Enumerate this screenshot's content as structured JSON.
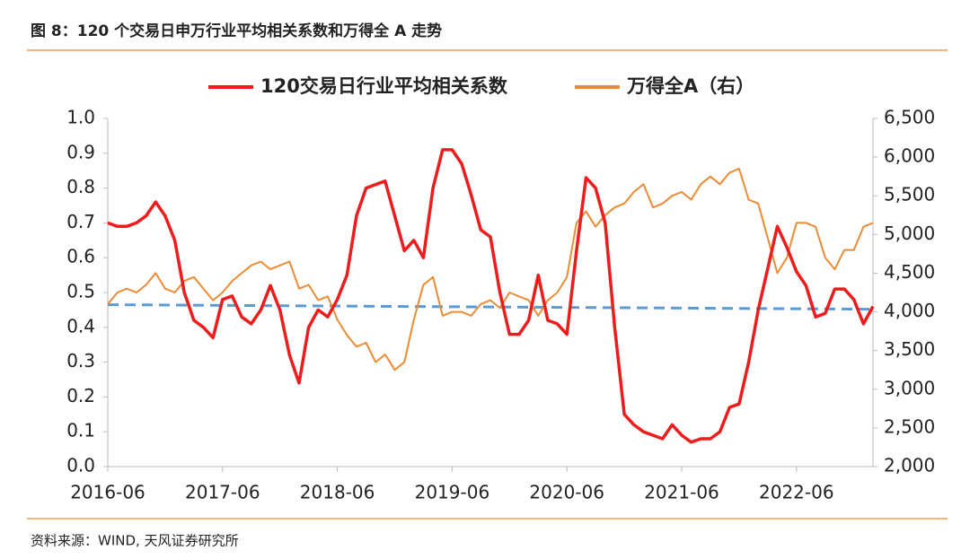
{
  "chart_data": {
    "type": "line",
    "title": "图 8：120 个交易日申万行业平均相关系数和万得全 A 走势",
    "source": "资料来源：WIND, 天风证券研究所",
    "x": [
      "2016-06",
      "2016-07",
      "2016-08",
      "2016-09",
      "2016-10",
      "2016-11",
      "2016-12",
      "2017-01",
      "2017-02",
      "2017-03",
      "2017-04",
      "2017-05",
      "2017-06",
      "2017-07",
      "2017-08",
      "2017-09",
      "2017-10",
      "2017-11",
      "2017-12",
      "2018-01",
      "2018-02",
      "2018-03",
      "2018-04",
      "2018-05",
      "2018-06",
      "2018-07",
      "2018-08",
      "2018-09",
      "2018-10",
      "2018-11",
      "2018-12",
      "2019-01",
      "2019-02",
      "2019-03",
      "2019-04",
      "2019-05",
      "2019-06",
      "2019-07",
      "2019-08",
      "2019-09",
      "2019-10",
      "2019-11",
      "2019-12",
      "2020-01",
      "2020-02",
      "2020-03",
      "2020-04",
      "2020-05",
      "2020-06",
      "2020-07",
      "2020-08",
      "2020-09",
      "2020-10",
      "2020-11",
      "2020-12",
      "2021-01",
      "2021-02",
      "2021-03",
      "2021-04",
      "2021-05",
      "2021-06",
      "2021-07",
      "2021-08",
      "2021-09",
      "2021-10",
      "2021-11",
      "2021-12",
      "2022-01",
      "2022-02",
      "2022-03",
      "2022-04",
      "2022-05",
      "2022-06",
      "2022-07",
      "2022-08",
      "2022-09",
      "2022-10",
      "2022-11",
      "2022-12",
      "2023-01",
      "2023-02"
    ],
    "series": [
      {
        "name": "120交易日行业平均相关系数",
        "color": "#ee1c1c",
        "values": [
          0.7,
          0.69,
          0.69,
          0.7,
          0.72,
          0.76,
          0.72,
          0.65,
          0.5,
          0.42,
          0.4,
          0.37,
          0.48,
          0.49,
          0.43,
          0.41,
          0.45,
          0.52,
          0.45,
          0.32,
          0.24,
          0.4,
          0.45,
          0.43,
          0.48,
          0.55,
          0.72,
          0.8,
          0.81,
          0.82,
          0.72,
          0.62,
          0.65,
          0.6,
          0.8,
          0.91,
          0.91,
          0.87,
          0.78,
          0.68,
          0.66,
          0.5,
          0.38,
          0.38,
          0.42,
          0.55,
          0.42,
          0.41,
          0.38,
          0.62,
          0.83,
          0.8,
          0.7,
          0.4,
          0.15,
          0.12,
          0.1,
          0.09,
          0.08,
          0.12,
          0.09,
          0.07,
          0.08,
          0.08,
          0.1,
          0.17,
          0.18,
          0.3,
          0.45,
          0.57,
          0.69,
          0.63,
          0.56,
          0.52,
          0.43,
          0.44,
          0.51,
          0.51,
          0.48,
          0.41,
          0.46
        ]
      },
      {
        "name": "万得全A（右）",
        "color": "#ed8b35",
        "axis": "y2",
        "values": [
          4100,
          4250,
          4300,
          4250,
          4350,
          4500,
          4300,
          4250,
          4400,
          4450,
          4300,
          4150,
          4250,
          4400,
          4500,
          4600,
          4650,
          4550,
          4600,
          4650,
          4300,
          4350,
          4150,
          4200,
          3900,
          3700,
          3550,
          3600,
          3350,
          3450,
          3250,
          3350,
          3900,
          4350,
          4450,
          3950,
          4000,
          4000,
          3950,
          4100,
          4150,
          4050,
          4250,
          4200,
          4150,
          3950,
          4150,
          4250,
          4450,
          5150,
          5300,
          5100,
          5250,
          5350,
          5400,
          5550,
          5650,
          5350,
          5400,
          5500,
          5550,
          5450,
          5650,
          5750,
          5650,
          5800,
          5850,
          5450,
          5400,
          4950,
          4500,
          4700,
          5150,
          5150,
          5100,
          4700,
          4550,
          4800,
          4800,
          5100,
          5150
        ]
      }
    ],
    "reference_line": {
      "x": [
        "2016-06",
        "2023-02"
      ],
      "values": [
        0.465,
        0.452
      ],
      "color": "#5b9bd5"
    },
    "xlim": [
      "2016-06",
      "2023-02"
    ],
    "xticks": [
      "2016-06",
      "2017-06",
      "2018-06",
      "2019-06",
      "2020-06",
      "2021-06",
      "2022-06"
    ],
    "ylim": [
      0,
      1
    ],
    "yticks": [
      {
        "value": 0,
        "label": "0.0"
      },
      0.1,
      0.2,
      0.3,
      0.4,
      0.5,
      0.6,
      0.7,
      0.8,
      0.9,
      {
        "value": 1,
        "label": "1.0"
      }
    ],
    "y2lim": [
      2000,
      6500
    ],
    "y2ticks": [
      {
        "value": 2000,
        "label": "2,000"
      },
      {
        "value": 2500,
        "label": "2,500"
      },
      {
        "value": 3000,
        "label": "3,000"
      },
      {
        "value": 3500,
        "label": "3,500"
      },
      {
        "value": 4000,
        "label": "4,000"
      },
      {
        "value": 4500,
        "label": "4,500"
      },
      {
        "value": 5000,
        "label": "5,000"
      },
      {
        "value": 5500,
        "label": "5,500"
      },
      {
        "value": 6000,
        "label": "6,000"
      },
      {
        "value": 6500,
        "label": "6,500"
      }
    ],
    "legend": "top"
  }
}
